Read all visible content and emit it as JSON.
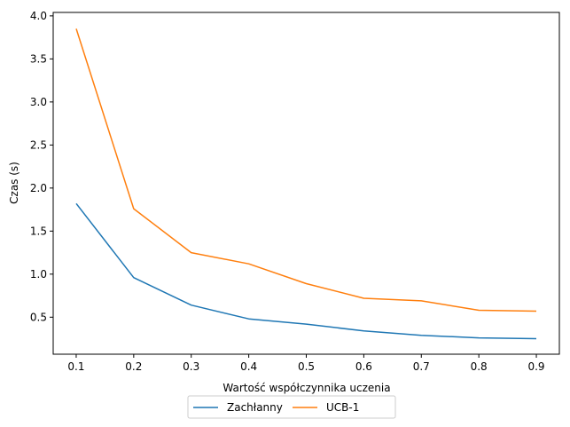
{
  "chart_data": {
    "type": "line",
    "title": "",
    "xlabel": "Wartość współczynnika uczenia",
    "ylabel": "Czas (s)",
    "x": [
      0.1,
      0.2,
      0.3,
      0.4,
      0.5,
      0.6,
      0.7,
      0.8,
      0.9
    ],
    "x_ticks": [
      "0.1",
      "0.2",
      "0.3",
      "0.4",
      "0.5",
      "0.6",
      "0.7",
      "0.8",
      "0.9"
    ],
    "y_ticks": [
      "0.5",
      "1.0",
      "1.5",
      "2.0",
      "2.5",
      "3.0",
      "3.5",
      "4.0"
    ],
    "xlim": [
      0.06,
      0.94
    ],
    "ylim": [
      0.07,
      4.04
    ],
    "grid": false,
    "legend_position": "bottom-center",
    "series": [
      {
        "name": "Zachłanny",
        "color": "#1f77b4",
        "values": [
          1.82,
          0.96,
          0.64,
          0.48,
          0.42,
          0.34,
          0.29,
          0.26,
          0.25
        ]
      },
      {
        "name": "UCB-1",
        "color": "#ff7f0e",
        "values": [
          3.85,
          1.76,
          1.25,
          1.12,
          0.89,
          0.72,
          0.69,
          0.58,
          0.57
        ]
      }
    ]
  }
}
